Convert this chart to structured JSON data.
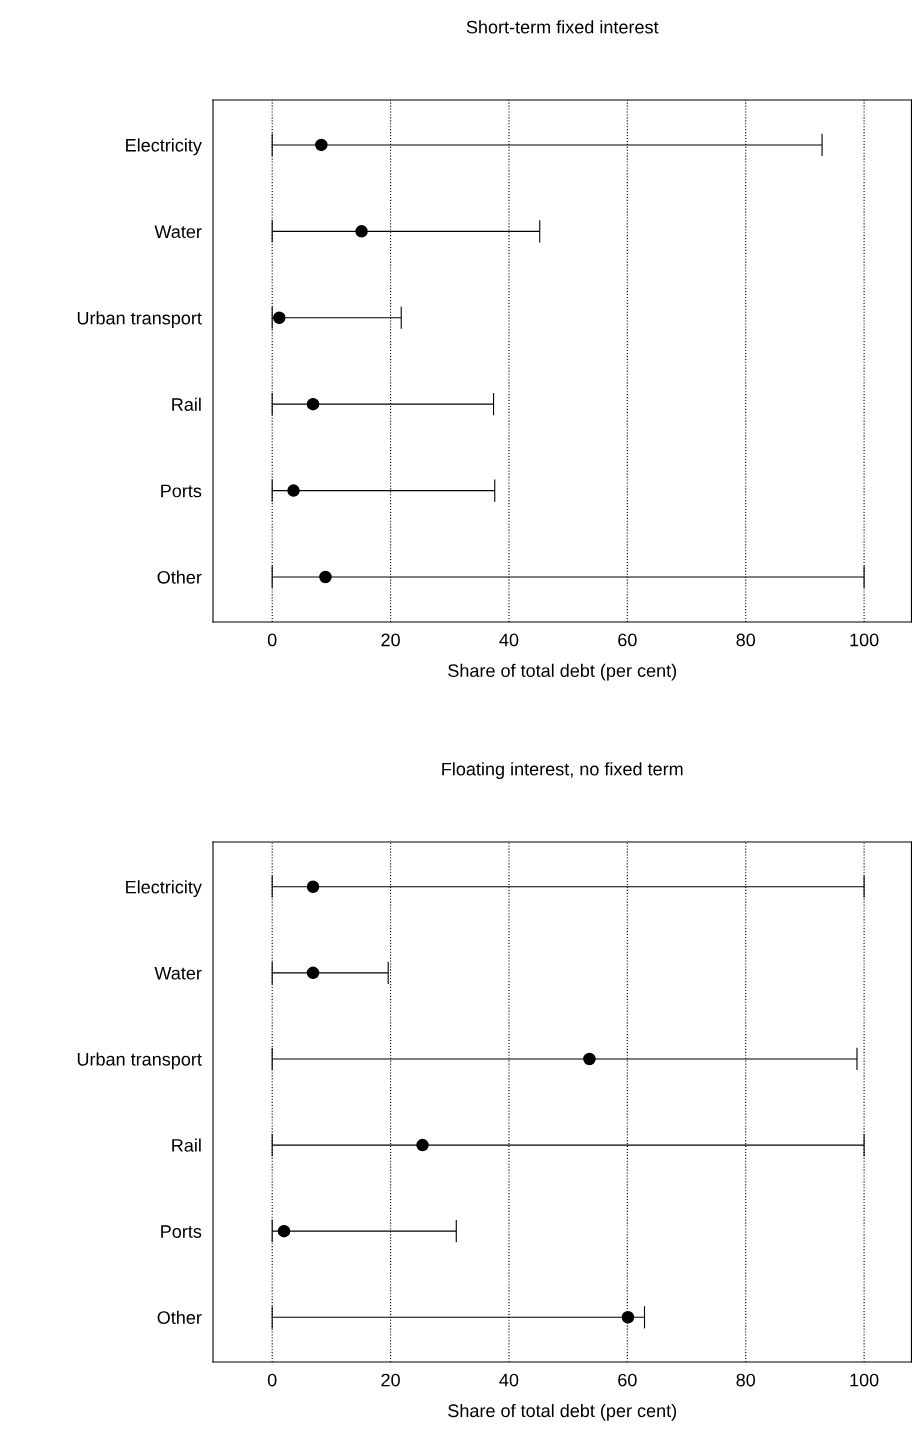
{
  "chart_data": [
    {
      "type": "scatter",
      "title": "Short-term fixed interest",
      "xlabel": "Share of total debt (per cent)",
      "orientation": "horizontal",
      "categories": [
        "Electricity",
        "Water",
        "Urban transport",
        "Rail",
        "Ports",
        "Other"
      ],
      "values": [
        8.3,
        15.1,
        1.2,
        6.9,
        3.6,
        9.0
      ],
      "errors": [
        [
          0,
          92.9
        ],
        [
          0,
          45.2
        ],
        [
          0,
          21.8
        ],
        [
          0,
          37.4
        ],
        [
          0,
          37.6
        ],
        [
          0,
          100
        ]
      ],
      "color": "#000000",
      "marker": "circle",
      "xlim": [
        -10,
        108
      ],
      "xticks": [
        0,
        20,
        40,
        60,
        80,
        100
      ],
      "grid": "x",
      "legend": false
    },
    {
      "type": "scatter",
      "title": "Floating interest, no fixed term",
      "xlabel": "Share of total debt (per cent)",
      "orientation": "horizontal",
      "categories": [
        "Electricity",
        "Water",
        "Urban transport",
        "Rail",
        "Ports",
        "Other"
      ],
      "values": [
        6.9,
        6.9,
        53.6,
        25.4,
        2.0,
        60.1
      ],
      "errors": [
        [
          0,
          100
        ],
        [
          0,
          19.6
        ],
        [
          0,
          98.8
        ],
        [
          0,
          100
        ],
        [
          0,
          31.1
        ],
        [
          0,
          62.9
        ]
      ],
      "color": "#000000",
      "marker": "circle",
      "xlim": [
        -10,
        108
      ],
      "xticks": [
        0,
        20,
        40,
        60,
        80,
        100
      ],
      "grid": "x",
      "legend": false
    }
  ]
}
